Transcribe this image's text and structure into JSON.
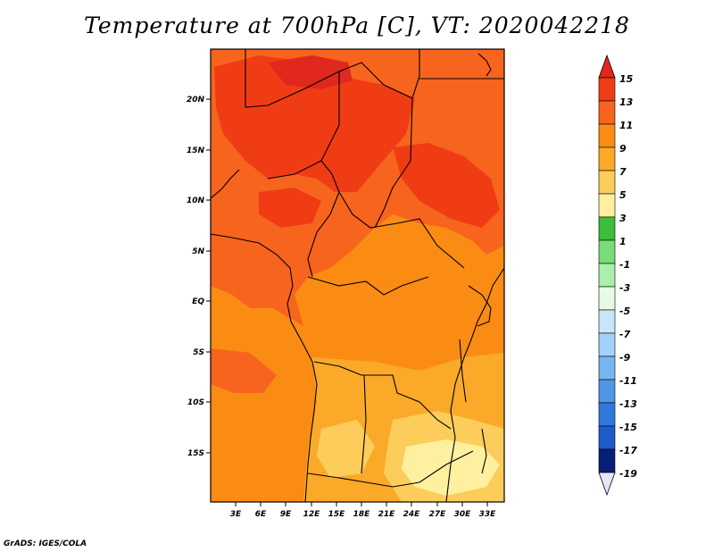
{
  "title": "Temperature at 700hPa [C], VT: 2020042218",
  "credit": "GrADS: IGES/COLA",
  "map": {
    "lon_labels": [
      "3E",
      "6E",
      "9E",
      "12E",
      "15E",
      "18E",
      "21E",
      "24E",
      "27E",
      "30E",
      "33E"
    ],
    "lat_labels": [
      "20N",
      "15N",
      "10N",
      "5N",
      "EQ",
      "5S",
      "10S",
      "15S"
    ]
  },
  "colorbar": {
    "labels": [
      "15",
      "13",
      "11",
      "9",
      "7",
      "5",
      "3",
      "1",
      "-1",
      "-3",
      "-5",
      "-7",
      "-9",
      "-11",
      "-13",
      "-15",
      "-17",
      "-19"
    ],
    "colors": {
      "above_15": "#e0281c",
      "c13_15": "#f03c14",
      "c11_13": "#f7641e",
      "c9_11": "#fa8c14",
      "c7_9": "#faaa28",
      "c5_7": "#fccd5a",
      "c3_5": "#fff0a0",
      "c1_3": "#3cbe3c",
      "cm1_1": "#78dc78",
      "cm3_m1": "#aaf0aa",
      "cm5_m3": "#e6fae6",
      "cm7_m5": "#c8e6fa",
      "cm9_m7": "#a0d2fa",
      "cm11_m9": "#78b4f0",
      "cm13_m11": "#5096e6",
      "cm15_m13": "#3278dc",
      "cm17_m15": "#1e5ac8",
      "cm19_m17": "#143caa",
      "below_m19": "#0a1e78",
      "below_tri": "#e6e6fa"
    }
  }
}
